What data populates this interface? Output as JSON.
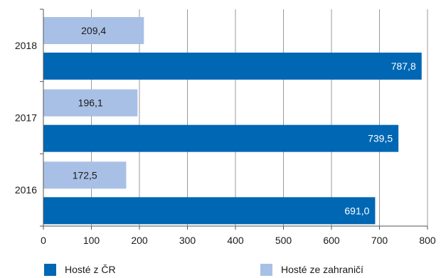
{
  "chart_data": {
    "type": "bar",
    "orientation": "horizontal",
    "categories": [
      "2018",
      "2017",
      "2016"
    ],
    "series": [
      {
        "name": "Hosté ze zahraničí",
        "values": [
          209.4,
          196.1,
          172.5
        ],
        "labels": [
          "209,4",
          "196,1",
          "172,5"
        ],
        "color": "#a9c0e6",
        "label_color": "#1a1a1a"
      },
      {
        "name": "Hosté z ČR",
        "values": [
          787.8,
          739.5,
          691.0
        ],
        "labels": [
          "787,8",
          "739,5",
          "691,0"
        ],
        "color": "#0067b4",
        "label_color": "#ffffff"
      }
    ],
    "xlim": [
      0,
      800
    ],
    "xticks": [
      0,
      100,
      200,
      300,
      400,
      500,
      600,
      700,
      800
    ],
    "xtick_labels": [
      "0",
      "100",
      "200",
      "300",
      "400",
      "500",
      "600",
      "700",
      "800"
    ],
    "grid": true,
    "legend_position": "bottom",
    "gridline_color": "#9a9a9a",
    "axis_color": "#555555"
  },
  "legend": {
    "items": [
      {
        "label": "Hosté z ČR",
        "color": "#0067b4"
      },
      {
        "label": "Hosté ze zahraničí",
        "color": "#a9c0e6"
      }
    ]
  }
}
